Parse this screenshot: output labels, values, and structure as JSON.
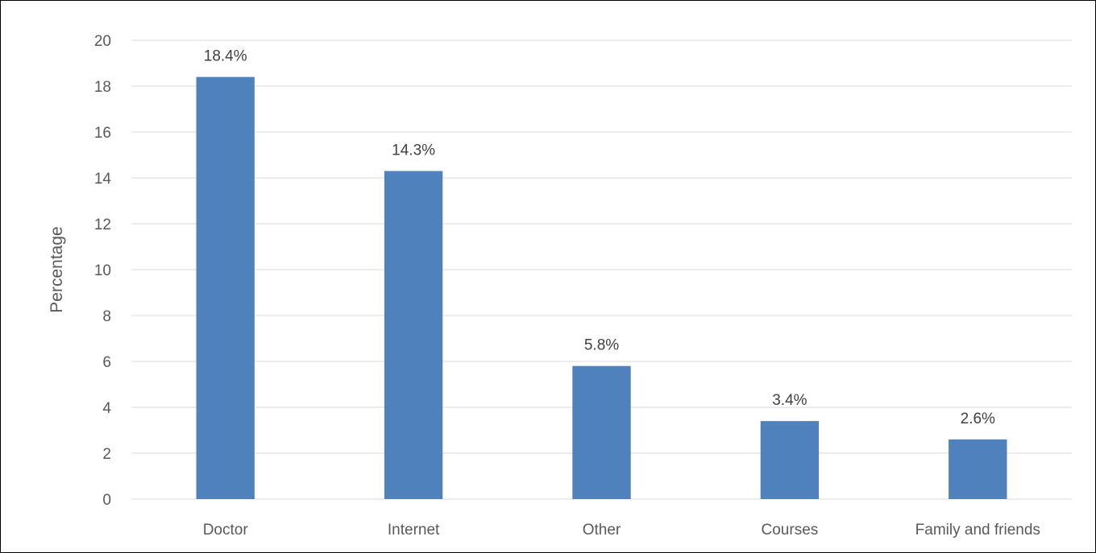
{
  "chart_data": {
    "type": "bar",
    "categories": [
      "Doctor",
      "Internet",
      "Other",
      "Courses",
      "Family and friends"
    ],
    "values": [
      18.4,
      14.3,
      5.8,
      3.4,
      2.6
    ],
    "data_labels": [
      "18.4%",
      "14.3%",
      "5.8%",
      "3.4%",
      "2.6%"
    ],
    "title": "",
    "xlabel": "",
    "ylabel": "Percentage",
    "ylim": [
      0,
      20
    ],
    "yticks": [
      0,
      2,
      4,
      6,
      8,
      10,
      12,
      14,
      16,
      18,
      20
    ],
    "grid": true,
    "legend": "none",
    "colors": {
      "bar": "#4F81BD",
      "grid": "#D9D9D9",
      "axis": "#D9D9D9",
      "text": "#595959"
    }
  }
}
